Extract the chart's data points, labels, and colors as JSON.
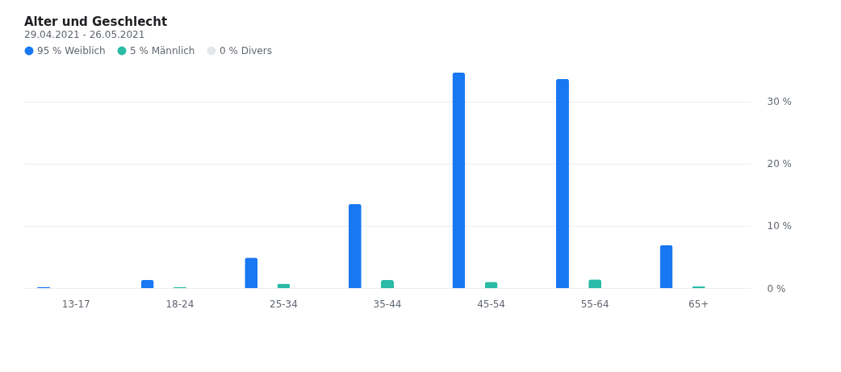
{
  "chart_data": {
    "type": "bar",
    "title": "Alter und Geschlecht",
    "subtitle": "29.04.2021 - 26.05.2021",
    "categories": [
      "13-17",
      "18-24",
      "25-34",
      "35-44",
      "45-54",
      "55-64",
      "65+"
    ],
    "series": [
      {
        "name": "95 % Weiblich",
        "color": "#1877f2",
        "values": [
          0.2,
          1.3,
          4.9,
          13.5,
          34.6,
          33.6,
          6.9
        ]
      },
      {
        "name": "5 % Männlich",
        "color": "#2abba7",
        "values": [
          0,
          0.2,
          0.7,
          1.3,
          1.0,
          1.4,
          0.3
        ]
      },
      {
        "name": "0 % Divers",
        "color": "#e4e6eb",
        "values": [
          0,
          0,
          0,
          0,
          0,
          0,
          0
        ]
      }
    ],
    "ylim": [
      0,
      35
    ],
    "yticks": [
      {
        "value": 0,
        "label": "0 %"
      },
      {
        "value": 10,
        "label": "10 %"
      },
      {
        "value": 20,
        "label": "20 %"
      },
      {
        "value": 30,
        "label": "30 %"
      }
    ],
    "grid": "y",
    "legend": "top left"
  }
}
